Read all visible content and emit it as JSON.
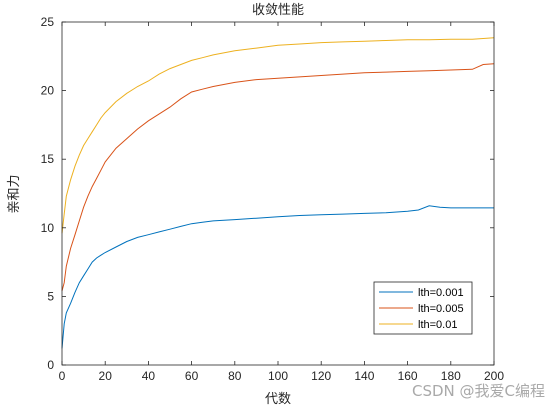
{
  "chart_data": {
    "type": "line",
    "title": "收敛性能",
    "xlabel": "代数",
    "ylabel": "亲和力",
    "xlim": [
      0,
      200
    ],
    "ylim": [
      0,
      25
    ],
    "xticks": [
      0,
      20,
      40,
      60,
      80,
      100,
      120,
      140,
      160,
      180,
      200
    ],
    "yticks": [
      0,
      5,
      10,
      15,
      20,
      25
    ],
    "grid": false,
    "legend_position": "bottom-right",
    "series": [
      {
        "name": "lth=0.001",
        "color": "#0072BD",
        "x": [
          0,
          1,
          2,
          4,
          6,
          8,
          10,
          12,
          14,
          16,
          18,
          20,
          25,
          30,
          35,
          40,
          45,
          50,
          55,
          60,
          65,
          70,
          80,
          90,
          100,
          110,
          120,
          130,
          140,
          150,
          160,
          165,
          170,
          175,
          180,
          190,
          200
        ],
        "y": [
          1.2,
          3.0,
          3.8,
          4.5,
          5.3,
          6.0,
          6.5,
          7.0,
          7.5,
          7.8,
          8.0,
          8.2,
          8.6,
          9.0,
          9.3,
          9.5,
          9.7,
          9.9,
          10.1,
          10.3,
          10.4,
          10.5,
          10.6,
          10.7,
          10.8,
          10.9,
          10.95,
          11.0,
          11.05,
          11.1,
          11.2,
          11.3,
          11.6,
          11.5,
          11.45,
          11.45,
          11.45
        ]
      },
      {
        "name": "lth=0.005",
        "color": "#D95319",
        "x": [
          0,
          1,
          2,
          4,
          6,
          8,
          10,
          12,
          14,
          16,
          18,
          20,
          25,
          30,
          35,
          40,
          45,
          50,
          55,
          60,
          65,
          70,
          80,
          90,
          100,
          110,
          120,
          130,
          140,
          150,
          160,
          170,
          180,
          190,
          195,
          200
        ],
        "y": [
          5.4,
          6.0,
          7.2,
          8.5,
          9.5,
          10.5,
          11.5,
          12.3,
          13.0,
          13.6,
          14.2,
          14.8,
          15.8,
          16.5,
          17.2,
          17.8,
          18.3,
          18.8,
          19.4,
          19.9,
          20.1,
          20.3,
          20.6,
          20.8,
          20.9,
          21.0,
          21.1,
          21.2,
          21.3,
          21.35,
          21.4,
          21.45,
          21.5,
          21.55,
          21.9,
          21.95
        ]
      },
      {
        "name": "lth=0.01",
        "color": "#EDB120",
        "x": [
          0,
          1,
          2,
          4,
          6,
          8,
          10,
          12,
          14,
          16,
          18,
          20,
          25,
          30,
          35,
          40,
          45,
          50,
          55,
          60,
          65,
          70,
          80,
          90,
          100,
          110,
          120,
          130,
          140,
          150,
          160,
          170,
          180,
          190,
          200
        ],
        "y": [
          9.6,
          11.0,
          12.3,
          13.5,
          14.5,
          15.3,
          16.0,
          16.5,
          17.0,
          17.5,
          18.0,
          18.4,
          19.2,
          19.8,
          20.3,
          20.7,
          21.2,
          21.6,
          21.9,
          22.2,
          22.4,
          22.6,
          22.9,
          23.1,
          23.3,
          23.4,
          23.5,
          23.55,
          23.6,
          23.65,
          23.7,
          23.7,
          23.75,
          23.75,
          23.85
        ]
      }
    ]
  },
  "watermark": "CSDN @我爱C编程"
}
